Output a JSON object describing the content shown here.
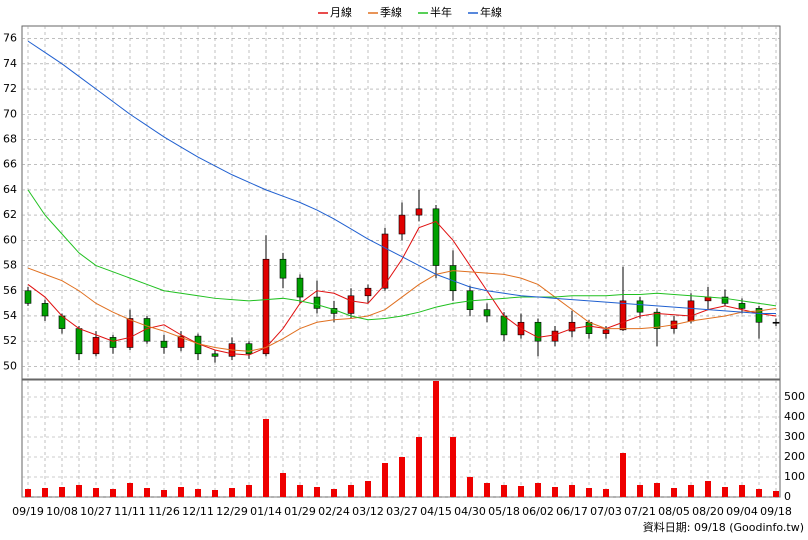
{
  "chart_data": [
    {
      "type": "candlestick",
      "categories": [
        "09/19",
        null,
        "10/08",
        null,
        "10/27",
        null,
        "11/11",
        null,
        "11/26",
        null,
        "12/11",
        null,
        "12/29",
        null,
        "01/14",
        null,
        "01/29",
        null,
        "02/24",
        null,
        "03/12",
        null,
        "03/27",
        null,
        "04/15",
        null,
        "04/30",
        null,
        "05/18",
        null,
        "06/02",
        null,
        "06/17",
        null,
        "07/03",
        null,
        "07/21",
        null,
        "08/05",
        null,
        "08/20",
        null,
        "09/04",
        null,
        "09/18"
      ],
      "open": [
        56.0,
        55.0,
        54.0,
        53.0,
        51.0,
        52.3,
        51.5,
        53.8,
        52.0,
        51.5,
        52.4,
        51.0,
        50.8,
        51.8,
        51.0,
        58.5,
        57.0,
        55.5,
        54.6,
        54.2,
        55.6,
        56.2,
        60.5,
        62.0,
        62.5,
        58.0,
        56.0,
        54.5,
        54.0,
        52.5,
        53.5,
        52.0,
        52.8,
        53.5,
        52.6,
        52.9,
        55.2,
        54.3,
        53.0,
        53.6,
        55.2,
        55.5,
        55.0,
        54.6,
        53.5
      ],
      "high": [
        56.3,
        55.3,
        54.2,
        53.2,
        52.8,
        52.5,
        54.5,
        54.0,
        52.5,
        52.8,
        52.6,
        51.3,
        52.3,
        52.0,
        60.4,
        59.0,
        57.3,
        56.8,
        55.2,
        56.2,
        56.5,
        61.0,
        63.0,
        64.0,
        62.8,
        59.2,
        56.4,
        55.0,
        54.3,
        54.2,
        53.8,
        53.2,
        54.4,
        53.7,
        53.2,
        57.9,
        55.5,
        54.6,
        54.0,
        55.8,
        56.3,
        56.1,
        55.4,
        54.8,
        53.8
      ],
      "low": [
        54.8,
        53.6,
        52.6,
        50.5,
        50.8,
        51.0,
        51.3,
        51.8,
        51.0,
        51.2,
        50.5,
        50.3,
        50.5,
        50.6,
        50.8,
        56.2,
        55.0,
        54.2,
        53.5,
        53.8,
        55.0,
        56.0,
        60.0,
        61.5,
        57.0,
        55.2,
        54.0,
        53.5,
        52.0,
        52.2,
        50.8,
        51.6,
        52.3,
        52.2,
        52.2,
        52.8,
        53.8,
        51.6,
        52.6,
        53.4,
        54.5,
        54.8,
        54.2,
        52.2,
        53.2
      ],
      "close": [
        55.0,
        54.0,
        53.0,
        51.0,
        52.3,
        51.5,
        53.8,
        52.0,
        51.5,
        52.4,
        51.0,
        50.8,
        51.8,
        51.0,
        58.5,
        57.0,
        55.5,
        54.6,
        54.2,
        55.6,
        56.2,
        60.5,
        62.0,
        62.5,
        58.0,
        56.0,
        54.5,
        54.0,
        52.5,
        53.5,
        52.0,
        52.8,
        53.5,
        52.6,
        52.9,
        55.2,
        54.3,
        53.0,
        53.6,
        55.2,
        55.5,
        55.0,
        54.6,
        53.5,
        53.5
      ],
      "up_color": "#e00000",
      "down_color": "#00a000",
      "series": [
        {
          "name": "月線",
          "color": "#e01010",
          "values": [
            56.5,
            55.5,
            54.0,
            53.0,
            52.5,
            52.0,
            52.3,
            53.0,
            53.3,
            52.5,
            51.8,
            51.3,
            51.0,
            50.9,
            51.5,
            53.0,
            55.0,
            56.0,
            55.8,
            55.2,
            55.0,
            56.5,
            58.5,
            61.0,
            61.5,
            60.0,
            58.0,
            56.0,
            54.0,
            53.0,
            52.3,
            52.5,
            53.0,
            53.2,
            53.0,
            53.5,
            54.0,
            54.2,
            54.1,
            54.0,
            54.5,
            54.8,
            54.5,
            54.2,
            54.0
          ]
        },
        {
          "name": "季線",
          "color": "#e07020",
          "values": [
            57.8,
            57.3,
            56.8,
            56.0,
            55.0,
            54.3,
            53.7,
            53.2,
            52.8,
            52.3,
            51.8,
            51.5,
            51.3,
            51.2,
            51.5,
            52.2,
            53.0,
            53.5,
            53.7,
            53.8,
            54.0,
            54.5,
            55.5,
            56.5,
            57.3,
            57.6,
            57.5,
            57.4,
            57.3,
            57.0,
            56.5,
            55.5,
            54.5,
            53.5,
            53.0,
            53.0,
            53.0,
            53.1,
            53.3,
            53.6,
            53.8,
            54.0,
            54.3,
            54.4,
            54.6
          ]
        },
        {
          "name": "半年",
          "color": "#20c020",
          "values": [
            64.0,
            62.0,
            60.5,
            59.0,
            58.0,
            57.5,
            57.0,
            56.5,
            56.0,
            55.8,
            55.6,
            55.4,
            55.3,
            55.2,
            55.3,
            55.4,
            55.2,
            54.9,
            54.5,
            54.0,
            53.7,
            53.8,
            54.0,
            54.3,
            54.7,
            55.0,
            55.2,
            55.3,
            55.4,
            55.5,
            55.5,
            55.5,
            55.6,
            55.6,
            55.6,
            55.7,
            55.7,
            55.8,
            55.7,
            55.6,
            55.5,
            55.4,
            55.2,
            55.0,
            54.8
          ]
        },
        {
          "name": "年線",
          "color": "#2060d0",
          "values": [
            75.8,
            74.9,
            74.0,
            73.0,
            72.0,
            71.0,
            70.0,
            69.1,
            68.2,
            67.4,
            66.6,
            65.9,
            65.2,
            64.6,
            64.0,
            63.5,
            63.0,
            62.4,
            61.7,
            60.9,
            60.1,
            59.4,
            58.7,
            58.0,
            57.3,
            56.8,
            56.3,
            56.0,
            55.8,
            55.6,
            55.5,
            55.4,
            55.3,
            55.2,
            55.1,
            55.0,
            54.9,
            54.8,
            54.7,
            54.6,
            54.5,
            54.4,
            54.3,
            54.2,
            54.2
          ]
        }
      ],
      "ylim": [
        49,
        77
      ],
      "yticks": [
        50,
        52,
        54,
        56,
        58,
        60,
        62,
        64,
        66,
        68,
        70,
        72,
        74,
        76
      ],
      "grid": true,
      "legend": "top",
      "footer": "資料日期: 09/18 (Goodinfo.tw)"
    },
    {
      "type": "bar",
      "values": [
        40,
        45,
        50,
        60,
        45,
        40,
        70,
        45,
        35,
        50,
        40,
        35,
        45,
        60,
        390,
        120,
        60,
        50,
        40,
        60,
        80,
        170,
        200,
        300,
        580,
        300,
        100,
        70,
        60,
        55,
        70,
        50,
        60,
        45,
        40,
        220,
        60,
        70,
        45,
        60,
        80,
        50,
        60,
        40,
        30
      ],
      "color": "#ee0000",
      "ylim": [
        0,
        585
      ],
      "yticks": [
        0,
        100,
        200,
        300,
        400,
        500
      ],
      "grid": true
    }
  ]
}
